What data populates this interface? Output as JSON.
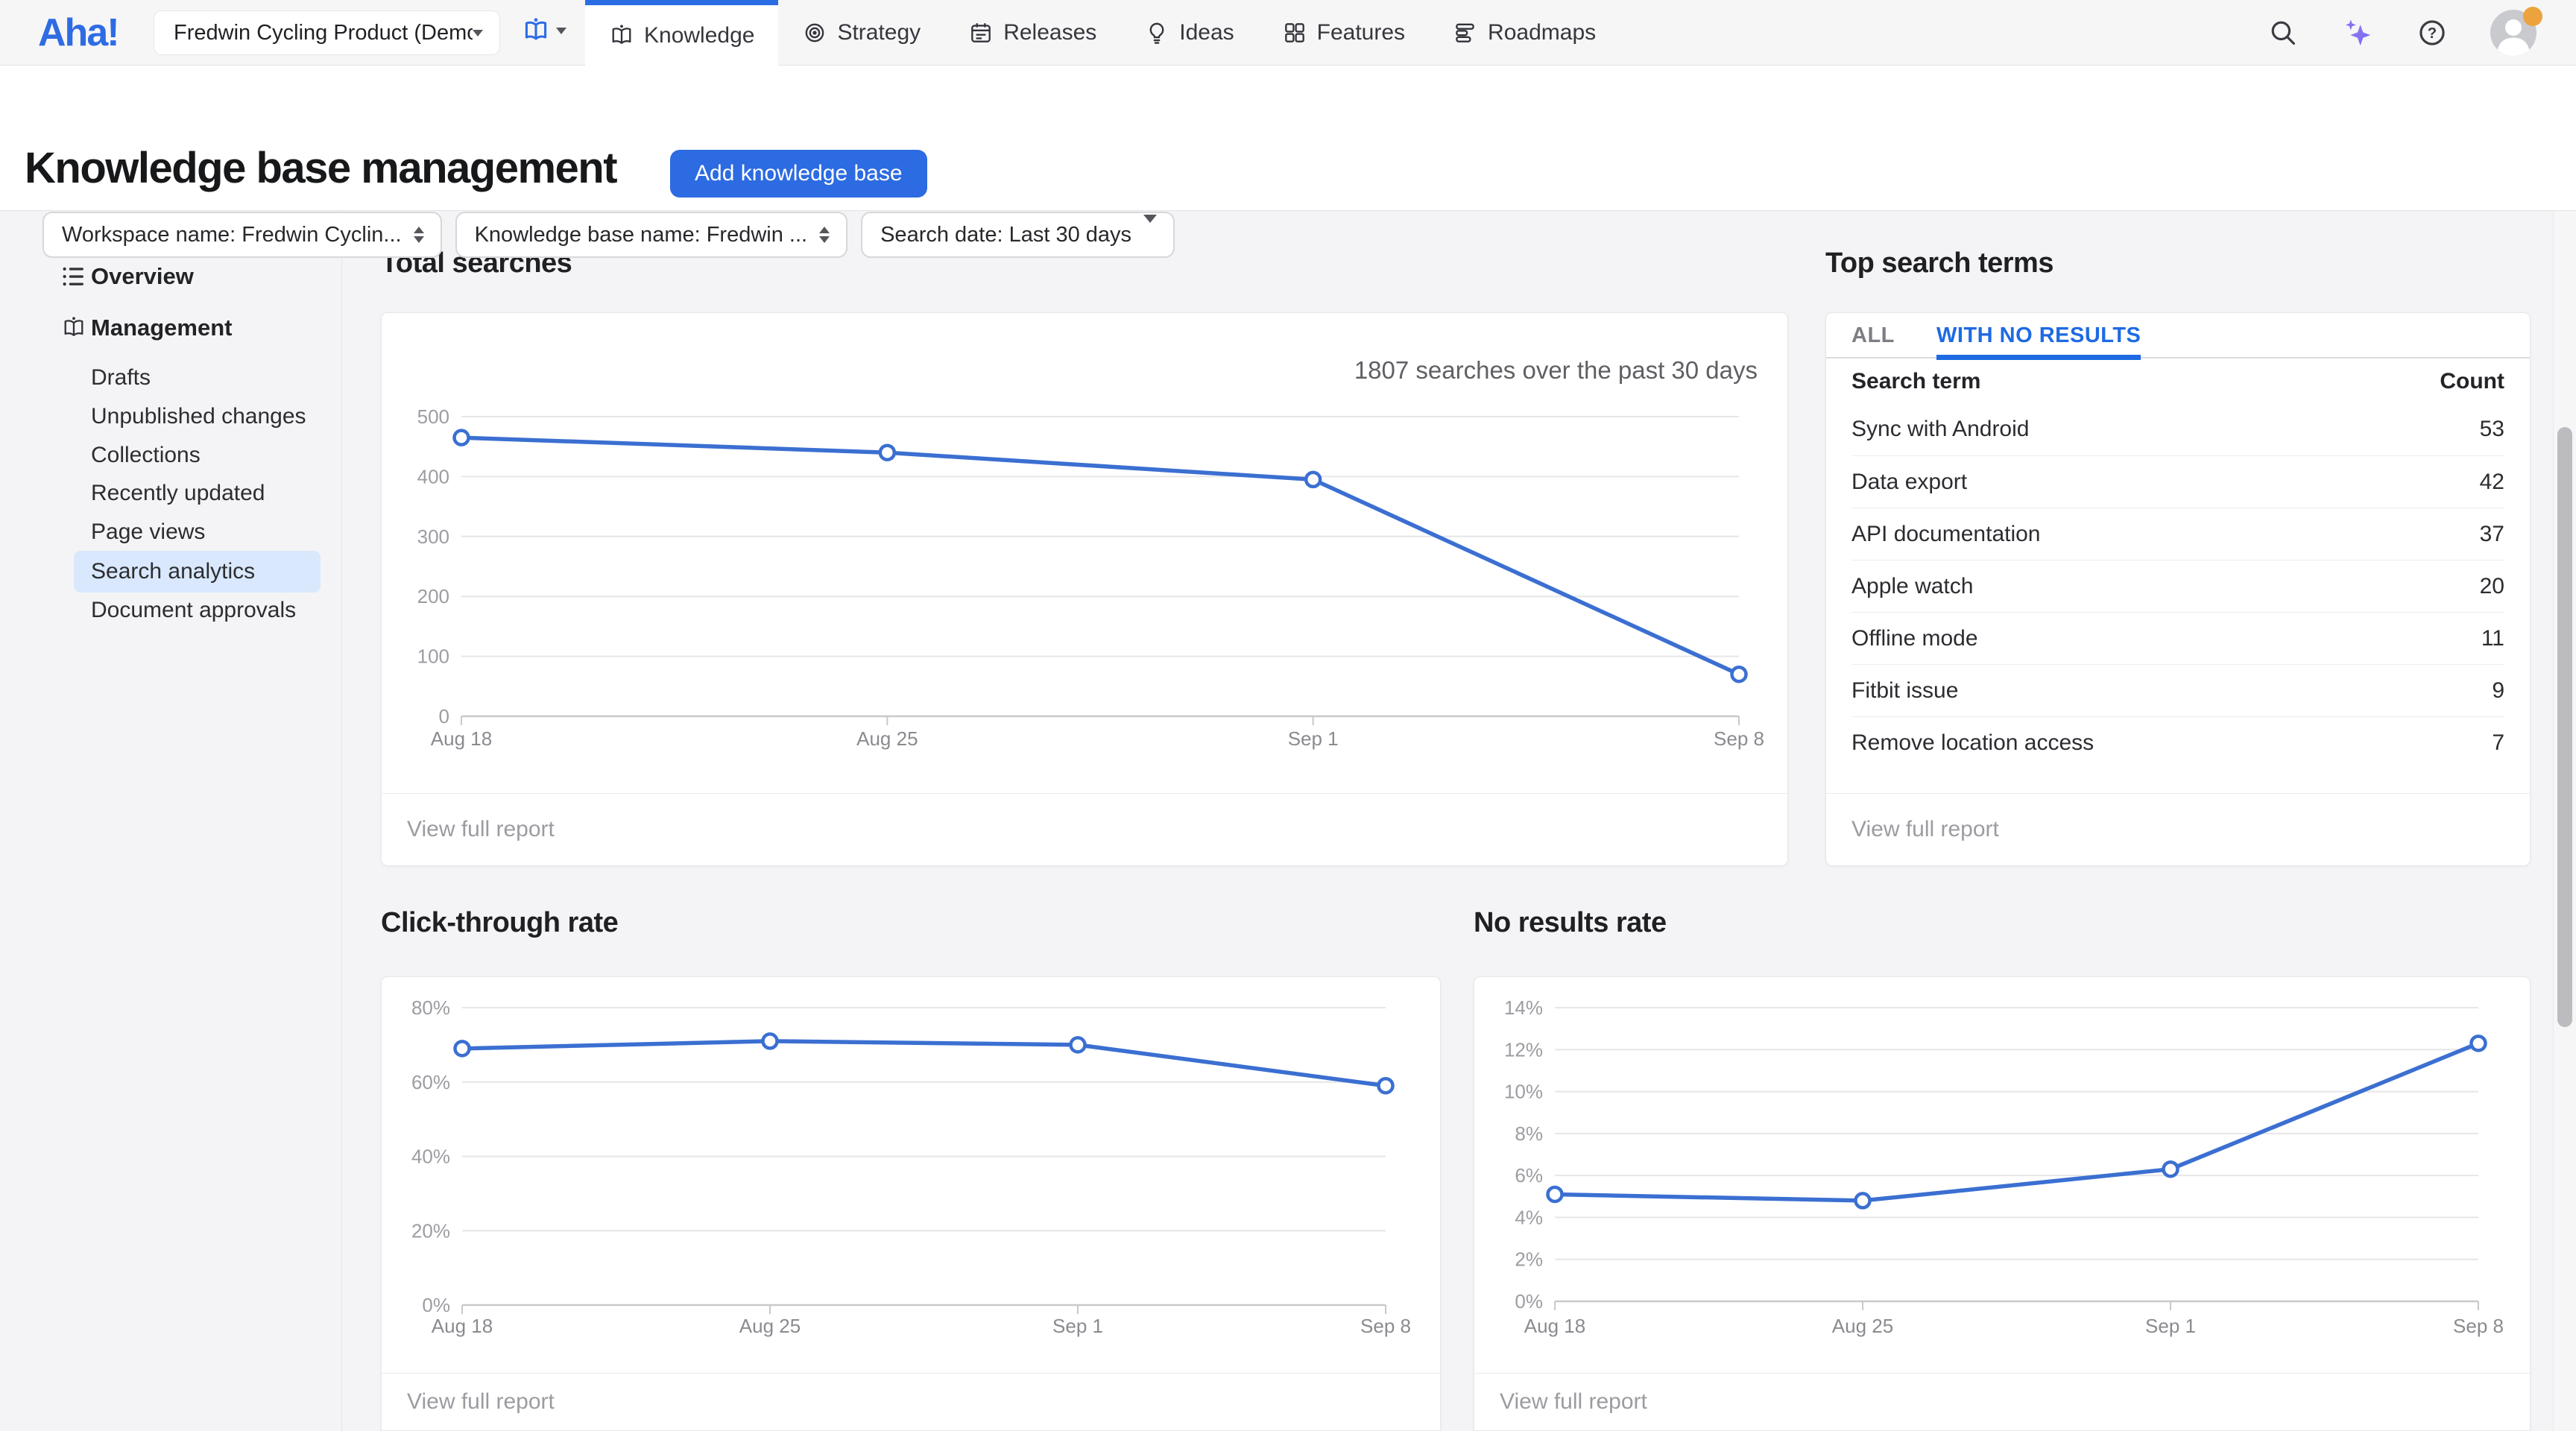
{
  "nav": {
    "logo": "Aha!",
    "workspace": "Fredwin Cycling Product (Demo)",
    "tabs": [
      {
        "label": "Knowledge",
        "icon": "book-icon",
        "active": true
      },
      {
        "label": "Strategy",
        "icon": "target-icon",
        "active": false
      },
      {
        "label": "Releases",
        "icon": "calendar-icon",
        "active": false
      },
      {
        "label": "Ideas",
        "icon": "bulb-icon",
        "active": false
      },
      {
        "label": "Features",
        "icon": "grid-icon",
        "active": false
      },
      {
        "label": "Roadmaps",
        "icon": "rows-icon",
        "active": false
      }
    ],
    "right_icons": [
      "search-icon",
      "ai-sparkle-icon",
      "help-icon",
      "user-avatar"
    ]
  },
  "header": {
    "title": "Knowledge base management",
    "add_button": "Add knowledge base"
  },
  "filters": [
    {
      "label": "Workspace name: Fredwin Cyclin...",
      "caret": "double"
    },
    {
      "label": "Knowledge base name: Fredwin ...",
      "caret": "double"
    },
    {
      "label": "Search date: Last 30 days",
      "caret": "single"
    }
  ],
  "sidebar": {
    "items": [
      {
        "label": "Overview",
        "icon": "list-icon",
        "level": 0,
        "selected": false
      },
      {
        "label": "Management",
        "icon": "book-icon",
        "level": 0,
        "selected": false
      },
      {
        "label": "Drafts",
        "level": 1,
        "selected": false
      },
      {
        "label": "Unpublished changes",
        "level": 1,
        "selected": false
      },
      {
        "label": "Collections",
        "level": 1,
        "selected": false
      },
      {
        "label": "Recently updated",
        "level": 1,
        "selected": false
      },
      {
        "label": "Page views",
        "level": 1,
        "selected": false
      },
      {
        "label": "Search analytics",
        "level": 1,
        "selected": true
      },
      {
        "label": "Document approvals",
        "level": 1,
        "selected": false
      }
    ]
  },
  "terms": {
    "title": "Top search terms",
    "tabs": [
      {
        "label": "ALL",
        "active": false
      },
      {
        "label": "WITH NO RESULTS",
        "active": true
      }
    ],
    "columns": [
      "Search term",
      "Count"
    ],
    "rows": [
      {
        "term": "Sync with Android",
        "count": 53
      },
      {
        "term": "Data export",
        "count": 42
      },
      {
        "term": "API documentation",
        "count": 37
      },
      {
        "term": "Apple watch",
        "count": 20
      },
      {
        "term": "Offline mode",
        "count": 11
      },
      {
        "term": "Fitbit issue",
        "count": 9
      },
      {
        "term": "Remove location access",
        "count": 7
      }
    ],
    "footer": "View full report"
  },
  "ui": {
    "footer_link": "View full report",
    "accent_blue": "#2a6ce4",
    "chart_line_blue": "#3b6fd1",
    "selected_item_bg": "#d9e8fc"
  },
  "chart_data": [
    {
      "id": "total-searches",
      "type": "line",
      "title": "Total searches",
      "annotation": "1807 searches over the past 30 days",
      "categories": [
        "Aug 18",
        "Aug 25",
        "Sep 1",
        "Sep 8"
      ],
      "values": [
        465,
        440,
        395,
        70
      ],
      "yticks": [
        0,
        100,
        200,
        300,
        400,
        500
      ],
      "ylim": [
        0,
        500
      ],
      "ytick_suffix": "",
      "grid": true,
      "legend": "none"
    },
    {
      "id": "click-through-rate",
      "type": "line",
      "title": "Click-through rate",
      "categories": [
        "Aug 18",
        "Aug 25",
        "Sep 1",
        "Sep 8"
      ],
      "values": [
        69,
        71,
        70,
        59
      ],
      "yticks": [
        0,
        20,
        40,
        60,
        80
      ],
      "ylim": [
        0,
        80
      ],
      "ytick_suffix": "%",
      "grid": true,
      "legend": "none"
    },
    {
      "id": "no-results-rate",
      "type": "line",
      "title": "No results rate",
      "categories": [
        "Aug 18",
        "Aug 25",
        "Sep 1",
        "Sep 8"
      ],
      "values": [
        5.1,
        4.8,
        6.3,
        12.3
      ],
      "yticks": [
        0,
        2,
        4,
        6,
        8,
        10,
        12,
        14
      ],
      "ylim": [
        0,
        14
      ],
      "ytick_suffix": "%",
      "grid": true,
      "legend": "none"
    }
  ]
}
